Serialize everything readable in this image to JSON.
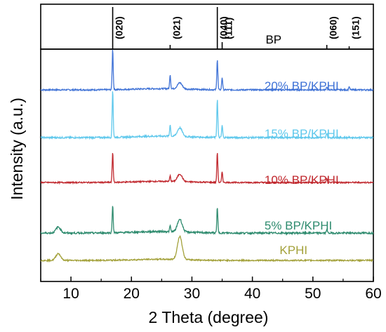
{
  "chart_data": {
    "type": "line",
    "xlabel": "2 Theta (degree)",
    "ylabel": "Intensity (a.u.)",
    "xlim": [
      5,
      60
    ],
    "x_ticks": [
      10,
      20,
      30,
      40,
      50,
      60
    ],
    "reference": {
      "name": "BP",
      "peaks": [
        {
          "x": 16.9,
          "label": "(020)"
        },
        {
          "x": 26.4,
          "label": "(021)"
        },
        {
          "x": 34.2,
          "label": "(040)"
        },
        {
          "x": 35.0,
          "label": "(111)"
        },
        {
          "x": 52.3,
          "label": "(060)"
        },
        {
          "x": 56.0,
          "label": "(151)"
        }
      ]
    },
    "series": [
      {
        "name": "20% BP/KPHI",
        "color": "#3f72d6",
        "peaks": [
          {
            "x": 16.9,
            "height": 1.0
          },
          {
            "x": 26.4,
            "height": 0.35
          },
          {
            "x": 28.0,
            "height": 0.15
          },
          {
            "x": 34.2,
            "height": 0.75
          },
          {
            "x": 35.0,
            "height": 0.3
          },
          {
            "x": 52.3,
            "height": 0.08
          },
          {
            "x": 56.0,
            "height": 0.08
          }
        ]
      },
      {
        "name": "15% BP/KPHI",
        "color": "#5fc8ec",
        "peaks": [
          {
            "x": 16.9,
            "height": 1.0
          },
          {
            "x": 26.4,
            "height": 0.25
          },
          {
            "x": 28.0,
            "height": 0.18
          },
          {
            "x": 34.2,
            "height": 0.8
          },
          {
            "x": 35.0,
            "height": 0.25
          },
          {
            "x": 52.3,
            "height": 0.1
          }
        ]
      },
      {
        "name": "10% BP/KPHI",
        "color": "#c0272d",
        "peaks": [
          {
            "x": 16.9,
            "height": 0.8
          },
          {
            "x": 26.4,
            "height": 0.15
          },
          {
            "x": 28.0,
            "height": 0.2
          },
          {
            "x": 34.2,
            "height": 0.8
          },
          {
            "x": 35.0,
            "height": 0.28
          },
          {
            "x": 52.3,
            "height": 0.1
          }
        ]
      },
      {
        "name": "5% BP/KPHI",
        "color": "#2e8b6e",
        "peaks": [
          {
            "x": 7.9,
            "height": 0.12
          },
          {
            "x": 16.9,
            "height": 0.55
          },
          {
            "x": 26.4,
            "height": 0.12
          },
          {
            "x": 28.0,
            "height": 0.25
          },
          {
            "x": 34.2,
            "height": 0.5
          },
          {
            "x": 52.3,
            "height": 0.08
          }
        ]
      },
      {
        "name": "KPHI",
        "color": "#a3a13a",
        "peaks": [
          {
            "x": 7.9,
            "height": 0.18
          },
          {
            "x": 28.0,
            "height": 0.6
          }
        ]
      }
    ]
  }
}
